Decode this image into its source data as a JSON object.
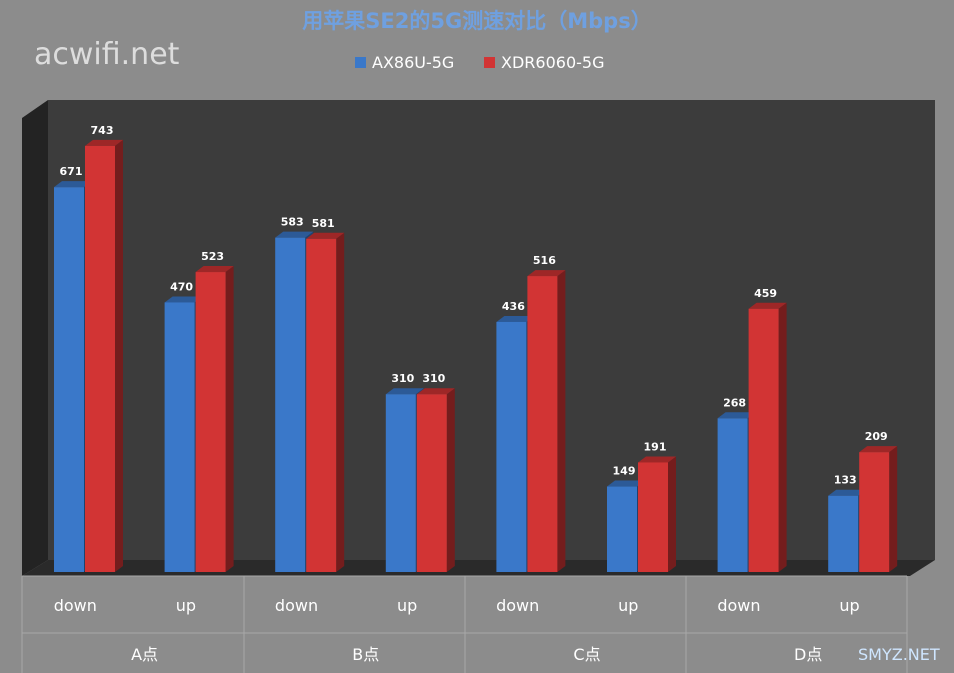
{
  "watermarks": {
    "top_left": "acwifi.net",
    "bottom_right": "SMYZ.NET"
  },
  "colors": {
    "background": "#8c8c8c",
    "plot_back": "#3c3c3c",
    "floor": "#2a2a2a",
    "series_a": "#3a78c9",
    "series_b": "#d23434",
    "title": "#6fa0e0"
  },
  "chart_data": {
    "type": "bar",
    "title": "用苹果SE2的5G测速对比（Mbps）",
    "xlabel": "",
    "ylabel": "",
    "ylim": [
      0,
      800
    ],
    "grid": false,
    "legend_position": "top",
    "categories": [
      "down",
      "up",
      "down",
      "up",
      "down",
      "up",
      "down",
      "up"
    ],
    "groups": [
      {
        "label": "A点",
        "span": 2
      },
      {
        "label": "B点",
        "span": 2
      },
      {
        "label": "C点",
        "span": 2
      },
      {
        "label": "D点",
        "span": 2
      }
    ],
    "series": [
      {
        "name": "AX86U-5G",
        "color": "#3a78c9",
        "values": [
          671,
          470,
          583,
          310,
          436,
          149,
          268,
          133
        ]
      },
      {
        "name": "XDR6060-5G",
        "color": "#d23434",
        "values": [
          743,
          523,
          581,
          310,
          516,
          191,
          459,
          209
        ]
      }
    ]
  }
}
